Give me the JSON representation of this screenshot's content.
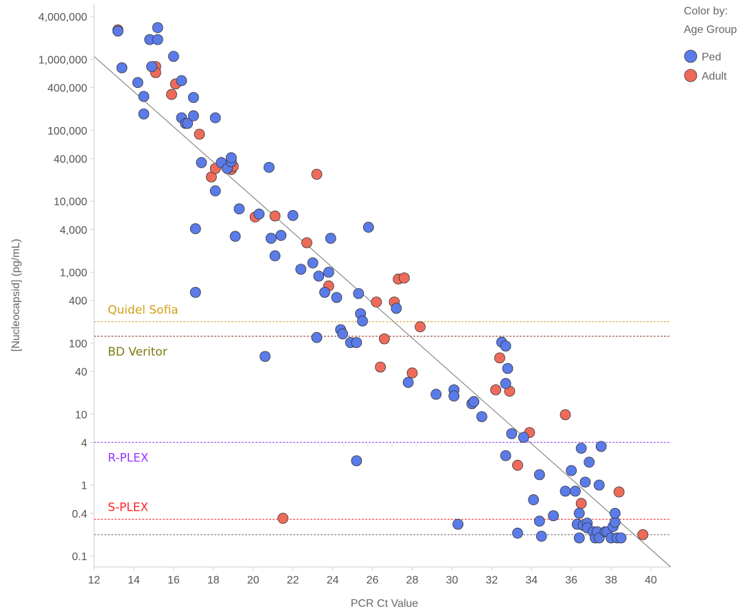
{
  "chart_data": {
    "type": "scatter",
    "xlabel": "PCR Ct Value",
    "ylabel": "[Nucleocapsid] (pg/mL)",
    "xlim": [
      12,
      41
    ],
    "xticks": [
      12,
      14,
      16,
      18,
      20,
      22,
      24,
      26,
      28,
      30,
      32,
      34,
      36,
      38,
      40
    ],
    "yscale": "log",
    "ylim": [
      0.07,
      6000000
    ],
    "yticks": [
      {
        "value": 4000000,
        "label": "4,000,000"
      },
      {
        "value": 1000000,
        "label": "1,000,000"
      },
      {
        "value": 400000,
        "label": "400,000"
      },
      {
        "value": 100000,
        "label": "100,000"
      },
      {
        "value": 40000,
        "label": "40,000"
      },
      {
        "value": 10000,
        "label": "10,000"
      },
      {
        "value": 4000,
        "label": "4,000"
      },
      {
        "value": 1000,
        "label": "1,000"
      },
      {
        "value": 400,
        "label": "400"
      },
      {
        "value": 100,
        "label": "100"
      },
      {
        "value": 40,
        "label": "40"
      },
      {
        "value": 10,
        "label": "10"
      },
      {
        "value": 4,
        "label": "4"
      },
      {
        "value": 1,
        "label": "1"
      },
      {
        "value": 0.4,
        "label": "0.4"
      },
      {
        "value": 0.1,
        "label": "0.1"
      }
    ],
    "grid": false,
    "legend": {
      "title_line1": "Color by:",
      "title_line2": "Age Group",
      "position": "top-right",
      "items": [
        {
          "name": "Ped",
          "color": "#5b7be8"
        },
        {
          "name": "Adult",
          "color": "#ee6b5b"
        }
      ]
    },
    "reference_lines": [
      {
        "label": "Quidel Sofia",
        "value": 200,
        "color": "#d4a017"
      },
      {
        "label": "BD Veritor",
        "value": 125,
        "color": "#8b2a1a",
        "label_color": "#7a7a10"
      },
      {
        "label": "R-PLEX",
        "value": 4,
        "color": "#9933ff"
      },
      {
        "label": "S-PLEX",
        "value": 0.33,
        "color": "#ff2222"
      },
      {
        "label": "",
        "value": 0.2,
        "color": "#666666"
      }
    ],
    "trendline": {
      "x": [
        12,
        41
      ],
      "y": [
        1100000,
        0.07
      ],
      "color": "#888888"
    },
    "series": [
      {
        "name": "Adult",
        "color": "#ee6b5b",
        "points": [
          [
            13.2,
            2600000
          ],
          [
            15.1,
            790000
          ],
          [
            15.1,
            650000
          ],
          [
            15.9,
            320000
          ],
          [
            16.1,
            450000
          ],
          [
            17.3,
            88000
          ],
          [
            17.9,
            22000
          ],
          [
            18.1,
            29000
          ],
          [
            18.9,
            28000
          ],
          [
            19.0,
            31000
          ],
          [
            20.1,
            6000
          ],
          [
            21.1,
            6200
          ],
          [
            22.7,
            2600
          ],
          [
            23.2,
            24000
          ],
          [
            23.8,
            640
          ],
          [
            26.2,
            380
          ],
          [
            26.4,
            46
          ],
          [
            26.6,
            115
          ],
          [
            27.1,
            380
          ],
          [
            27.3,
            800
          ],
          [
            27.6,
            830
          ],
          [
            28.0,
            38
          ],
          [
            28.4,
            170
          ],
          [
            32.2,
            22
          ],
          [
            32.4,
            62
          ],
          [
            32.9,
            21
          ],
          [
            33.3,
            1.9
          ],
          [
            33.9,
            5.5
          ],
          [
            35.7,
            9.8
          ],
          [
            36.5,
            0.55
          ],
          [
            38.4,
            0.8
          ],
          [
            39.6,
            0.2
          ],
          [
            21.5,
            0.34
          ]
        ]
      },
      {
        "name": "Ped",
        "color": "#5b7be8",
        "points": [
          [
            13.2,
            2500000
          ],
          [
            13.4,
            760000
          ],
          [
            14.2,
            470000
          ],
          [
            14.5,
            300000
          ],
          [
            14.5,
            170000
          ],
          [
            14.8,
            1900000
          ],
          [
            14.9,
            790000
          ],
          [
            15.2,
            1900000
          ],
          [
            15.2,
            2800000
          ],
          [
            16.0,
            1100000
          ],
          [
            16.4,
            500000
          ],
          [
            16.4,
            150000
          ],
          [
            16.6,
            125000
          ],
          [
            16.7,
            125000
          ],
          [
            17.0,
            290000
          ],
          [
            17.0,
            160000
          ],
          [
            17.1,
            4100
          ],
          [
            17.1,
            520
          ],
          [
            18.1,
            150000
          ],
          [
            18.1,
            14000
          ],
          [
            17.4,
            35000
          ],
          [
            18.4,
            35000
          ],
          [
            18.7,
            29000
          ],
          [
            18.9,
            36000
          ],
          [
            18.9,
            41000
          ],
          [
            19.1,
            3200
          ],
          [
            19.3,
            7800
          ],
          [
            20.3,
            6600
          ],
          [
            20.6,
            65
          ],
          [
            20.8,
            30000
          ],
          [
            20.9,
            3000
          ],
          [
            21.1,
            1700
          ],
          [
            21.4,
            3300
          ],
          [
            22.0,
            6300
          ],
          [
            22.4,
            1100
          ],
          [
            23.0,
            1350
          ],
          [
            23.2,
            120
          ],
          [
            23.3,
            880
          ],
          [
            23.6,
            520
          ],
          [
            23.8,
            1000
          ],
          [
            23.9,
            3000
          ],
          [
            24.2,
            440
          ],
          [
            24.4,
            155
          ],
          [
            24.5,
            135
          ],
          [
            24.9,
            102
          ],
          [
            25.2,
            102
          ],
          [
            25.3,
            500
          ],
          [
            25.4,
            260
          ],
          [
            25.5,
            205
          ],
          [
            25.2,
            2.2
          ],
          [
            25.8,
            4300
          ],
          [
            27.2,
            310
          ],
          [
            27.8,
            28
          ],
          [
            29.2,
            19
          ],
          [
            30.1,
            22
          ],
          [
            30.1,
            18
          ],
          [
            30.3,
            0.28
          ],
          [
            31.0,
            14
          ],
          [
            31.1,
            15
          ],
          [
            31.5,
            9.2
          ],
          [
            32.5,
            103
          ],
          [
            32.7,
            27
          ],
          [
            32.7,
            91
          ],
          [
            32.8,
            44
          ],
          [
            32.7,
            2.6
          ],
          [
            33.0,
            5.3
          ],
          [
            33.3,
            0.21
          ],
          [
            33.6,
            4.7
          ],
          [
            34.1,
            0.62
          ],
          [
            34.4,
            1.4
          ],
          [
            34.4,
            0.31
          ],
          [
            34.5,
            0.19
          ],
          [
            35.1,
            0.37
          ],
          [
            35.7,
            0.82
          ],
          [
            36.0,
            1.6
          ],
          [
            36.2,
            0.82
          ],
          [
            36.3,
            0.28
          ],
          [
            36.4,
            0.4
          ],
          [
            36.4,
            0.18
          ],
          [
            36.5,
            3.3
          ],
          [
            36.6,
            0.27
          ],
          [
            36.7,
            1.1
          ],
          [
            36.8,
            0.29
          ],
          [
            36.8,
            0.25
          ],
          [
            36.9,
            2.1
          ],
          [
            37.1,
            0.22
          ],
          [
            37.2,
            0.18
          ],
          [
            37.3,
            0.22
          ],
          [
            37.4,
            1.0
          ],
          [
            37.4,
            0.18
          ],
          [
            37.5,
            3.5
          ],
          [
            37.7,
            0.22
          ],
          [
            37.8,
            0.22
          ],
          [
            38.0,
            0.18
          ],
          [
            38.1,
            0.26
          ],
          [
            38.2,
            0.3
          ],
          [
            38.2,
            0.4
          ],
          [
            38.3,
            0.18
          ],
          [
            38.5,
            0.18
          ]
        ]
      }
    ]
  }
}
